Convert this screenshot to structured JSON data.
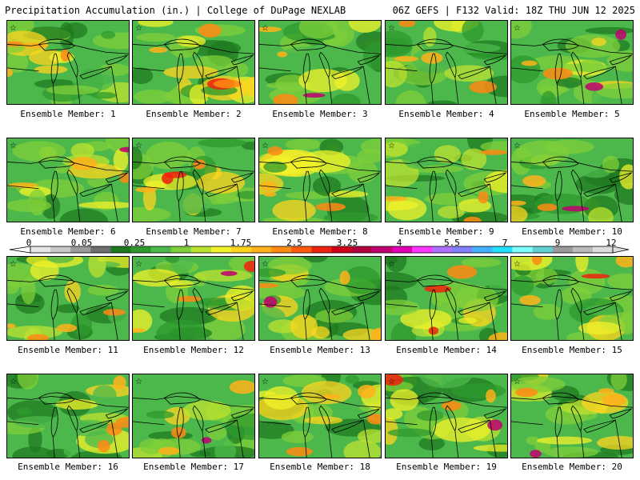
{
  "header": {
    "left": "Precipitation Accumulation (in.) | College of DuPage NEXLAB",
    "right": "06Z GEFS | F132 Valid: 18Z THU JUN 12 2025"
  },
  "legend": {
    "tick_labels": [
      "0",
      "0.05",
      "0.25",
      "1",
      "1.75",
      "2.5",
      "3.25",
      "4",
      "5.5",
      "7",
      "9",
      "12"
    ],
    "colors": [
      "#e6e6e6",
      "#c8c8c8",
      "#9b9b9b",
      "#6e6e6e",
      "#1f7a1f",
      "#2e9a2e",
      "#4cb84c",
      "#7fcf3a",
      "#bde22f",
      "#f2f22a",
      "#ffd41f",
      "#ffb21a",
      "#ff8a14",
      "#ff5a10",
      "#f0220d",
      "#d0001a",
      "#b0003a",
      "#c00070",
      "#e000b0",
      "#ff33ff",
      "#b070ff",
      "#7f7fff",
      "#40b0ff",
      "#20e0ff",
      "#80ffff",
      "#60d0d0",
      "#9a9a9a",
      "#bbbbbb",
      "#dddddd"
    ]
  },
  "caption_prefix": "Ensemble Member: ",
  "members": [
    "1",
    "2",
    "3",
    "4",
    "5",
    "6",
    "7",
    "8",
    "9",
    "10",
    "11",
    "12",
    "13",
    "14",
    "15",
    "16",
    "17",
    "18",
    "19",
    "20"
  ]
}
